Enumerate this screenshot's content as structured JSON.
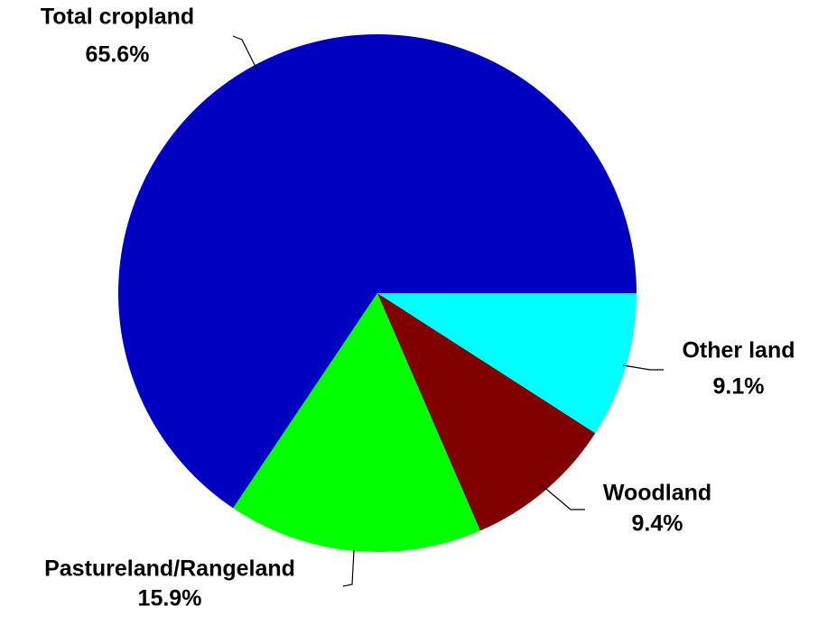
{
  "chart_data": {
    "type": "pie",
    "categories": [
      "Total cropland",
      "Pastureland/Rangeland",
      "Woodland",
      "Other land"
    ],
    "values": [
      65.6,
      15.9,
      9.4,
      9.1
    ],
    "value_labels": [
      "65.6%",
      "15.9%",
      "9.4%",
      "9.1%"
    ],
    "colors": [
      "#0000c0",
      "#00ff00",
      "#800000",
      "#00ffff"
    ]
  }
}
